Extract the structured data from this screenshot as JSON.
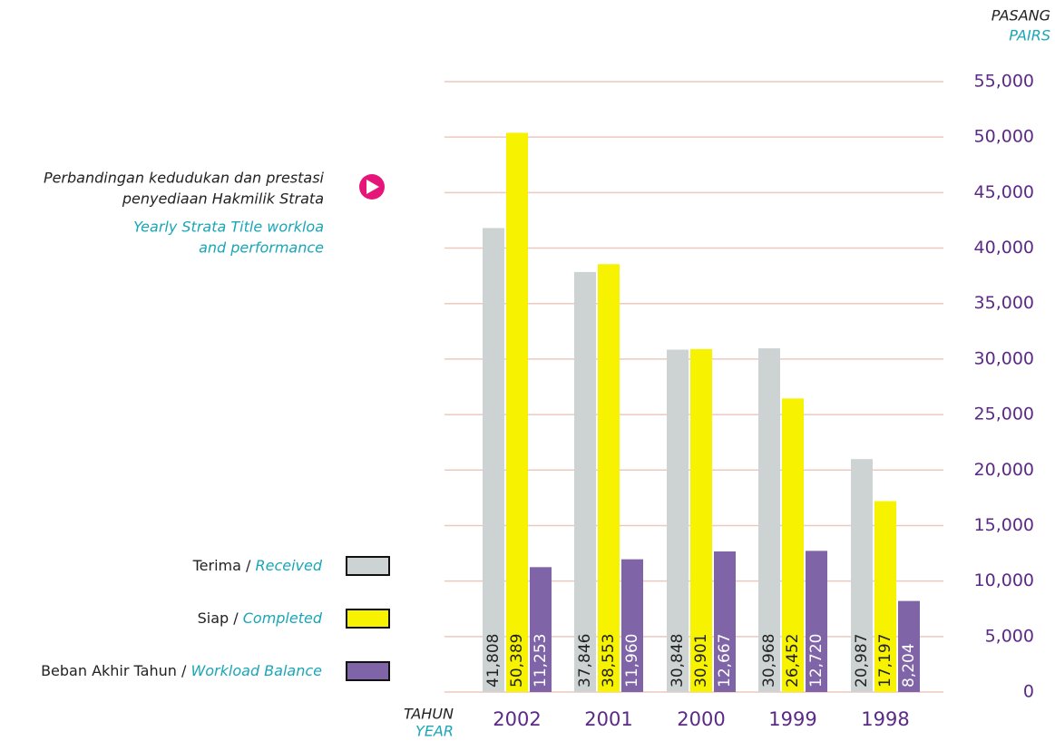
{
  "chart_data": {
    "type": "bar",
    "title": [
      "Perbandingan kedudukan dan prestasi",
      "penyediaan Hakmilik Strata"
    ],
    "subtitle": [
      "Yearly Strata Title workloa",
      "and performance"
    ],
    "y_label": [
      "PASANG",
      "PAIRS"
    ],
    "x_label": [
      "TAHUN",
      "YEAR"
    ],
    "categories": [
      "2002",
      "2001",
      "2000",
      "1999",
      "1998"
    ],
    "series": [
      {
        "name": "Terima / Received",
        "color": "#cdd3d2",
        "values": [
          41808,
          37846,
          30848,
          30968,
          20987
        ],
        "value_labels": [
          "41,808",
          "37,846",
          "30,848",
          "30,968",
          "20,987"
        ]
      },
      {
        "name": "Siap / Completed",
        "color": "#f7f200",
        "values": [
          50389,
          38553,
          30901,
          26452,
          17197
        ],
        "value_labels": [
          "50,389",
          "38,553",
          "30,901",
          "26,452",
          "17,197"
        ]
      },
      {
        "name": "Beban Akhir Tahun / Workload Balance",
        "color": "#8064a8",
        "values": [
          11253,
          11960,
          12667,
          12720,
          8204
        ],
        "value_labels": [
          "11,253",
          "11,960",
          "12,667",
          "12,720",
          "8,204"
        ]
      }
    ],
    "ylim": [
      0,
      55000
    ],
    "yticks": [
      0,
      {
        "value": 5000,
        "label": "5,000"
      },
      {
        "value": 10000,
        "label": "10,000"
      },
      {
        "value": 15000,
        "label": "15,000"
      },
      {
        "value": 20000,
        "label": "20,000"
      },
      {
        "value": 25000,
        "label": "25,000"
      },
      {
        "value": 30000,
        "label": "30,000"
      },
      {
        "value": 35000,
        "label": "35,000"
      },
      {
        "value": 40000,
        "label": "40,000"
      },
      {
        "value": 45000,
        "label": "45,000"
      },
      {
        "value": 50000,
        "label": "50,000"
      },
      {
        "value": 55000,
        "label": "55,000"
      }
    ],
    "grid": true
  }
}
